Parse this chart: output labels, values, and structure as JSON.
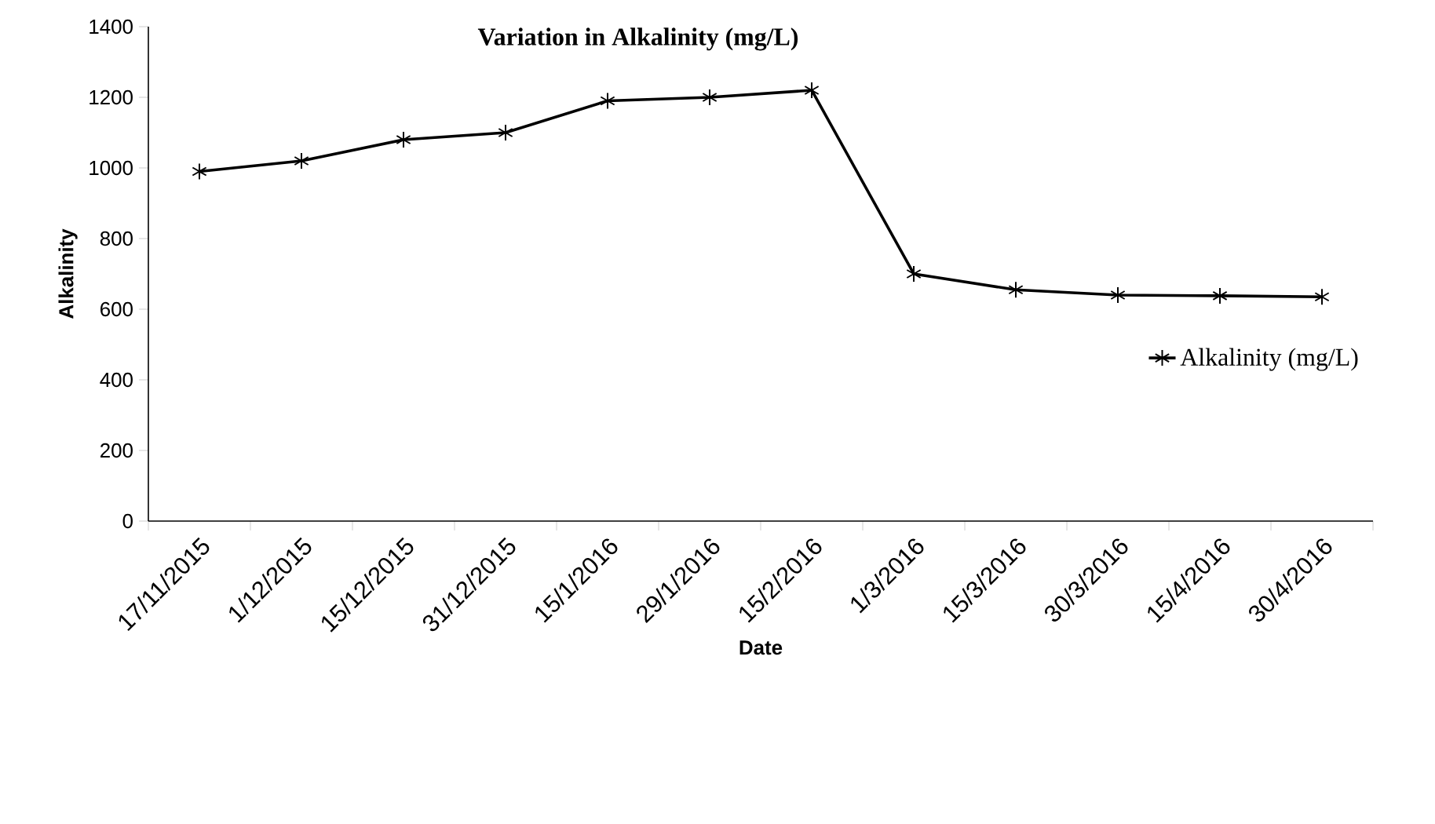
{
  "chart_data": {
    "type": "line",
    "title": "Variation in Alkalinity (mg/L)",
    "xlabel": "Date",
    "ylabel": "Alkalinity",
    "categories": [
      "17/11/2015",
      "1/12/2015",
      "15/12/2015",
      "31/12/2015",
      "15/1/2016",
      "29/1/2016",
      "15/2/2016",
      "1/3/2016",
      "15/3/2016",
      "30/3/2016",
      "15/4/2016",
      "30/4/2016"
    ],
    "series": [
      {
        "name": "Alkalinity (mg/L)",
        "color": "#000000",
        "values": [
          990,
          1020,
          1080,
          1100,
          1190,
          1200,
          1220,
          700,
          655,
          640,
          638,
          635
        ]
      }
    ],
    "ylim": [
      0,
      1400
    ],
    "yticks": [
      0,
      200,
      400,
      600,
      800,
      1000,
      1200,
      1400
    ],
    "grid": false,
    "legend": "right",
    "marker": "cross",
    "line_style": "solid"
  }
}
